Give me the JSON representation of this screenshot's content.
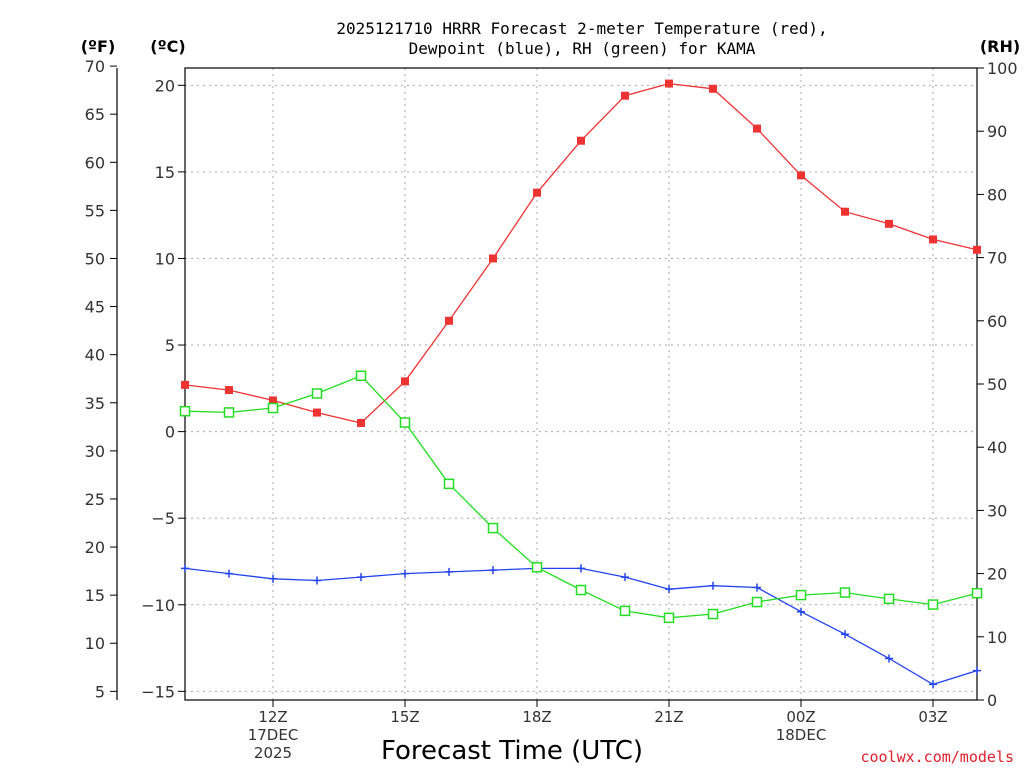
{
  "chart_data": {
    "type": "line",
    "title_line1": "2025121710 HRRR Forecast 2-meter Temperature (red),",
    "title_line2": "Dewpoint (blue), RH (green) for KAMA",
    "xlabel": "Forecast Time (UTC)",
    "credit": "coolwx.com/models",
    "axis_units": {
      "fahrenheit": "(ºF)",
      "celsius": "(ºC)",
      "rh": "(RH)"
    },
    "grid": true,
    "hours": [
      10,
      11,
      12,
      13,
      14,
      15,
      16,
      17,
      18,
      19,
      20,
      21,
      22,
      23,
      24,
      25,
      26,
      27,
      28
    ],
    "xlim": [
      10,
      28
    ],
    "celsius_ylim": [
      -15.5,
      21
    ],
    "fahrenheit_ylim": [
      4.1,
      69.8
    ],
    "rh_ylim": [
      0,
      100
    ],
    "x_ticks": [
      {
        "hour": 12,
        "lines": [
          "12Z",
          "17DEC",
          "2025"
        ]
      },
      {
        "hour": 15,
        "lines": [
          "15Z"
        ]
      },
      {
        "hour": 18,
        "lines": [
          "18Z"
        ]
      },
      {
        "hour": 21,
        "lines": [
          "21Z"
        ]
      },
      {
        "hour": 24,
        "lines": [
          "00Z",
          "18DEC"
        ]
      },
      {
        "hour": 27,
        "lines": [
          "03Z"
        ]
      }
    ],
    "celsius_ticks": [
      20,
      15,
      10,
      5,
      0,
      -5,
      -10,
      -15
    ],
    "celsius_tick_labels": [
      "20",
      "15",
      "10",
      "5",
      "0",
      "−5",
      "−10",
      "−15"
    ],
    "fahrenheit_ticks": [
      70,
      65,
      60,
      55,
      50,
      45,
      40,
      35,
      30,
      25,
      20,
      15,
      10,
      5
    ],
    "rh_ticks": [
      100,
      90,
      80,
      70,
      60,
      50,
      40,
      30,
      20,
      10,
      0
    ],
    "series": [
      {
        "name": "Temperature",
        "unit": "C",
        "color": "#ee3333",
        "marker": "filled-square",
        "values": [
          2.7,
          2.4,
          1.8,
          1.1,
          0.5,
          2.9,
          6.4,
          10.0,
          13.8,
          16.8,
          19.4,
          20.1,
          19.8,
          17.5,
          14.8,
          12.7,
          12.0,
          11.1,
          10.5
        ]
      },
      {
        "name": "Dewpoint",
        "unit": "C",
        "color": "#2244ee",
        "marker": "plus",
        "values": [
          -7.9,
          -8.2,
          -8.5,
          -8.6,
          -8.4,
          -8.2,
          -8.1,
          -8.0,
          -7.9,
          -7.9,
          -8.4,
          -9.1,
          -8.9,
          -9.0,
          -10.4,
          -11.7,
          -13.1,
          -14.6,
          -13.8
        ]
      },
      {
        "name": "RH",
        "unit": "%",
        "color": "#22dd22",
        "marker": "open-square",
        "values": [
          45.7,
          45.5,
          46.2,
          48.5,
          51.3,
          43.9,
          34.2,
          27.2,
          21.0,
          17.4,
          14.1,
          13.0,
          13.6,
          15.5,
          16.6,
          17.0,
          16.0,
          15.1,
          16.9
        ]
      }
    ]
  }
}
